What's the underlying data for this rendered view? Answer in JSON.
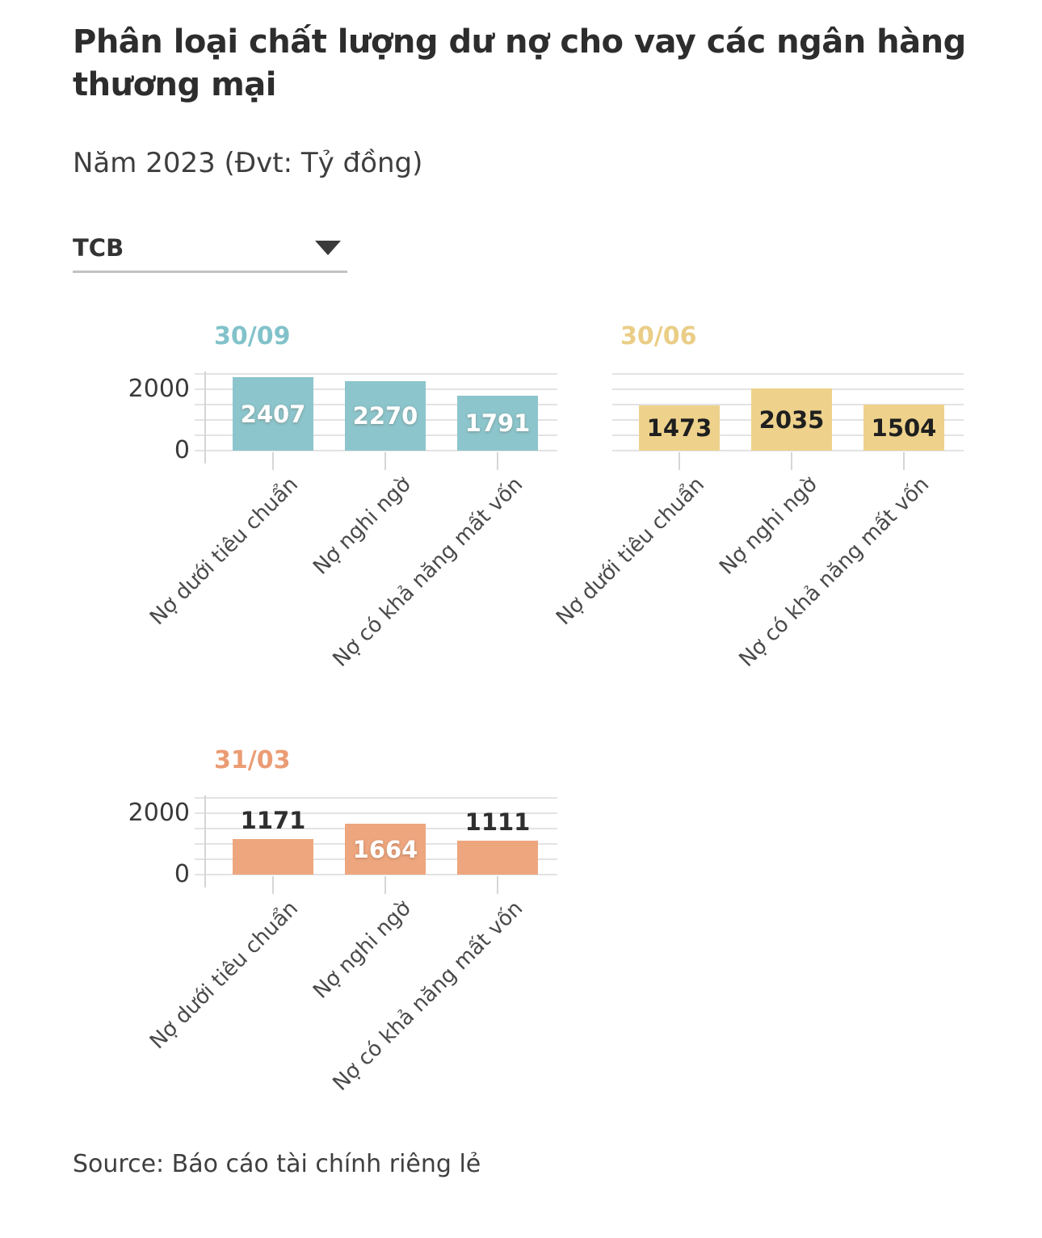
{
  "page": {
    "title": "Phân loại chất lượng dư nợ cho vay các ngân hàng thương mại",
    "subtitle": "Năm 2023 (Đvt: Tỷ đồng)",
    "source": "Source: Báo cáo tài chính riêng lẻ"
  },
  "bank_selector": {
    "value": "TCB"
  },
  "chart_data": {
    "type": "bar",
    "title": "Phân loại chất lượng dư nợ cho vay các ngân hàng thương mại",
    "subtitle": "Năm 2023",
    "unit": "Tỷ đồng",
    "selected_bank": "TCB",
    "categories": [
      "Nợ dưới tiêu chuẩn",
      "Nợ nghi ngờ",
      "Nợ có khả năng mất vốn"
    ],
    "ylim": [
      0,
      2500
    ],
    "grid_step": 500,
    "y_ticks": [
      0,
      2000
    ],
    "grid": true,
    "legend": "none",
    "outside_label_color": "#2f2f2f",
    "panels": [
      {
        "label": "30/09",
        "values": [
          2407,
          2270,
          1791
        ],
        "bar_color": "#8cc5cc",
        "header_color": "#82c2ca",
        "inside_label_color": "#ffffff",
        "show_y_axis": true
      },
      {
        "label": "30/06",
        "values": [
          1473,
          2035,
          1504
        ],
        "bar_color": "#eed28c",
        "header_color": "#eacd86",
        "inside_label_color": "#1f1f1f",
        "show_y_axis": false
      },
      {
        "label": "31/03",
        "values": [
          1171,
          1664,
          1111
        ],
        "bar_color": "#eda67e",
        "header_color": "#eb9c74",
        "inside_label_color": "#ffffff",
        "show_y_axis": true
      }
    ]
  }
}
